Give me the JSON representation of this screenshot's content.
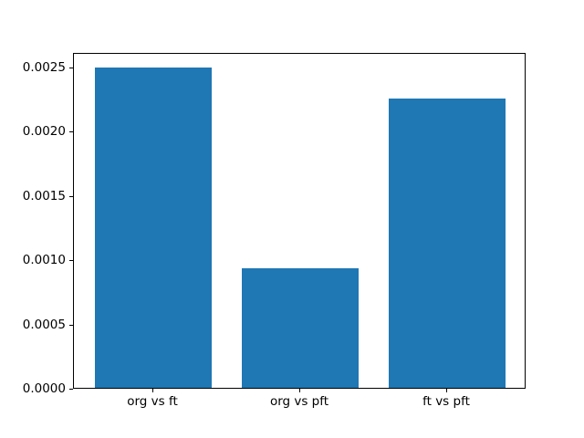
{
  "figure": {
    "background_color": "#ffffff",
    "axes_edge_color": "#000000",
    "tick_color": "#000000"
  },
  "chart_data": {
    "type": "bar",
    "title": "",
    "xlabel": "",
    "ylabel": "",
    "categories": [
      "org vs ft",
      "org vs pft",
      "ft vs pft"
    ],
    "values": [
      0.00249,
      0.00093,
      0.00225
    ],
    "bar_color": "#1f77b4",
    "bar_width": 0.8,
    "ylim": [
      0,
      0.00261
    ],
    "yticks": [
      0.0,
      0.0005,
      0.001,
      0.0015,
      0.002,
      0.0025
    ],
    "ytick_labels": [
      "0.0000",
      "0.0005",
      "0.0010",
      "0.0015",
      "0.0020",
      "0.0025"
    ],
    "grid": false,
    "legend": null
  }
}
